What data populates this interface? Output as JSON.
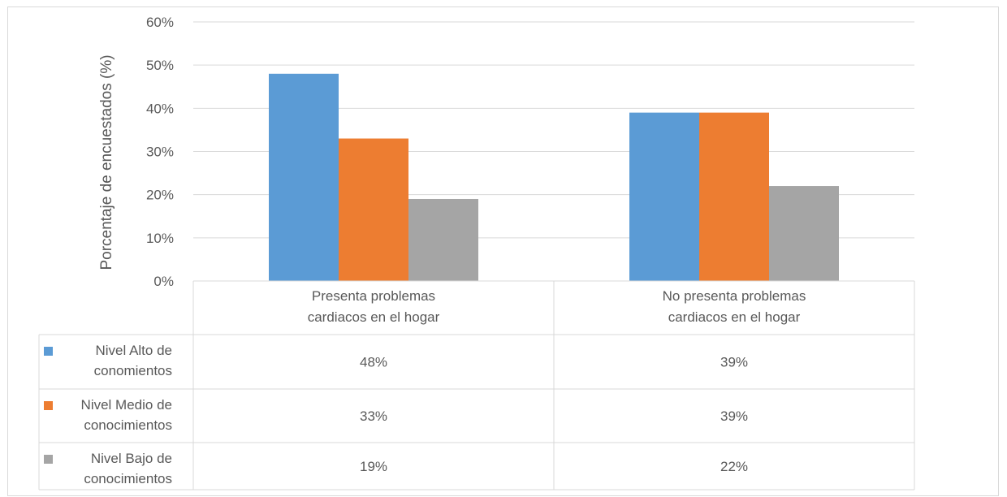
{
  "chart_data": {
    "type": "bar",
    "title": "",
    "xlabel": "",
    "ylabel": "Porcentaje de encuestados (%)",
    "ylim": [
      0,
      60
    ],
    "yticks": [
      "0%",
      "10%",
      "20%",
      "30%",
      "40%",
      "50%",
      "60%"
    ],
    "grid": true,
    "legend": "data-table",
    "categories": [
      [
        "Presenta problemas",
        "cardiacos en el hogar"
      ],
      [
        "No presenta problemas",
        "cardiacos en el hogar"
      ]
    ],
    "series": [
      {
        "name": [
          "Nivel Alto de",
          "conomientos"
        ],
        "values": [
          48,
          39
        ],
        "labels": [
          "48%",
          "39%"
        ],
        "color": "#5b9bd5"
      },
      {
        "name": [
          "Nivel Medio de",
          "conocimientos"
        ],
        "values": [
          33,
          39
        ],
        "labels": [
          "33%",
          "39%"
        ],
        "color": "#ed7d31"
      },
      {
        "name": [
          "Nivel Bajo de",
          "conocimientos"
        ],
        "values": [
          19,
          22
        ],
        "labels": [
          "19%",
          "22%"
        ],
        "color": "#a5a5a5"
      }
    ]
  }
}
